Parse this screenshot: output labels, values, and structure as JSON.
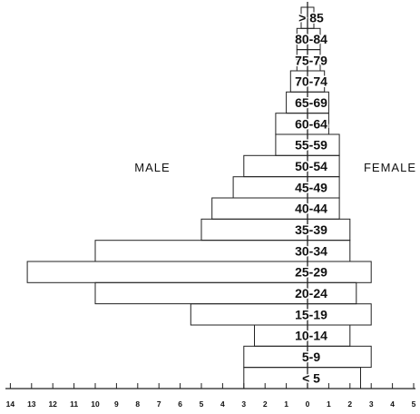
{
  "chart_data": {
    "type": "bar",
    "orientation": "horizontal",
    "layout": "population-pyramid",
    "categories": [
      "< 5",
      "5-9",
      "10-14",
      "15-19",
      "20-24",
      "25-29",
      "30-34",
      "35-39",
      "40-44",
      "45-49",
      "50-54",
      "55-59",
      "60-64",
      "65-69",
      "70-74",
      "75-79",
      "80-84",
      "> 85"
    ],
    "series": [
      {
        "name": "MALE",
        "side": "left",
        "values": [
          3.0,
          3.0,
          2.5,
          5.5,
          10.0,
          13.2,
          10.0,
          5.0,
          4.5,
          3.5,
          3.0,
          1.5,
          1.5,
          1.0,
          0.8,
          0.5,
          0.5,
          0.3
        ]
      },
      {
        "name": "FEMALE",
        "side": "right",
        "values": [
          2.5,
          3.0,
          2.0,
          3.0,
          2.3,
          3.0,
          2.0,
          2.0,
          1.5,
          1.5,
          1.5,
          1.5,
          1.0,
          1.0,
          0.8,
          0.6,
          0.6,
          0.3
        ]
      }
    ],
    "xlim_male": [
      0,
      14
    ],
    "xlim_female": [
      0,
      5
    ],
    "x_tick_labels_male": [
      "14",
      "13",
      "12",
      "11",
      "10",
      "9",
      "8",
      "7",
      "6",
      "5",
      "4",
      "3",
      "2",
      "1",
      "0"
    ],
    "x_tick_labels_female": [
      "1",
      "2",
      "3",
      "4",
      "5"
    ],
    "grid": false,
    "legend": "none",
    "colors": {
      "outline": "#222222",
      "background": "#ffffff"
    }
  }
}
